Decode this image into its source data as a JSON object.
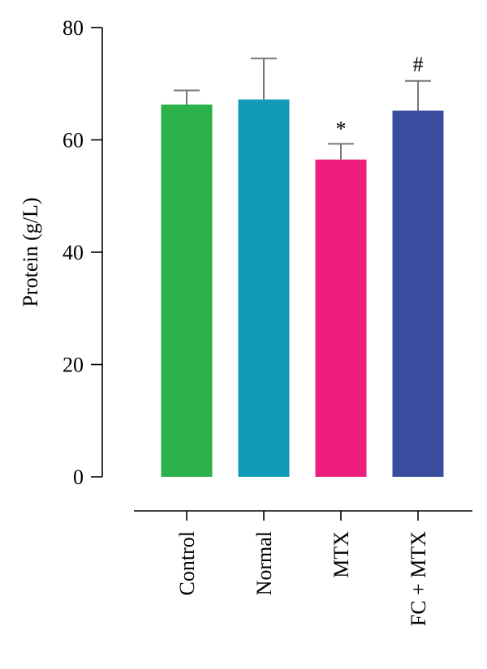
{
  "chart_data": {
    "type": "bar",
    "title": "",
    "xlabel": "",
    "ylabel": "Protein (g/L)",
    "ylim": [
      0,
      80
    ],
    "yticks": [
      0,
      20,
      40,
      60,
      80
    ],
    "categories": [
      "Control",
      "Normal",
      "MTX",
      "FC + MTX"
    ],
    "values": [
      66.3,
      67.2,
      56.5,
      65.2
    ],
    "error_upper": [
      2.5,
      7.3,
      2.8,
      5.3
    ],
    "annotations": [
      "",
      "",
      "*",
      "#"
    ],
    "colors": [
      "#2DB24B",
      "#0F9BB5",
      "#EE1E7E",
      "#3A4C9E"
    ],
    "grid": false
  }
}
